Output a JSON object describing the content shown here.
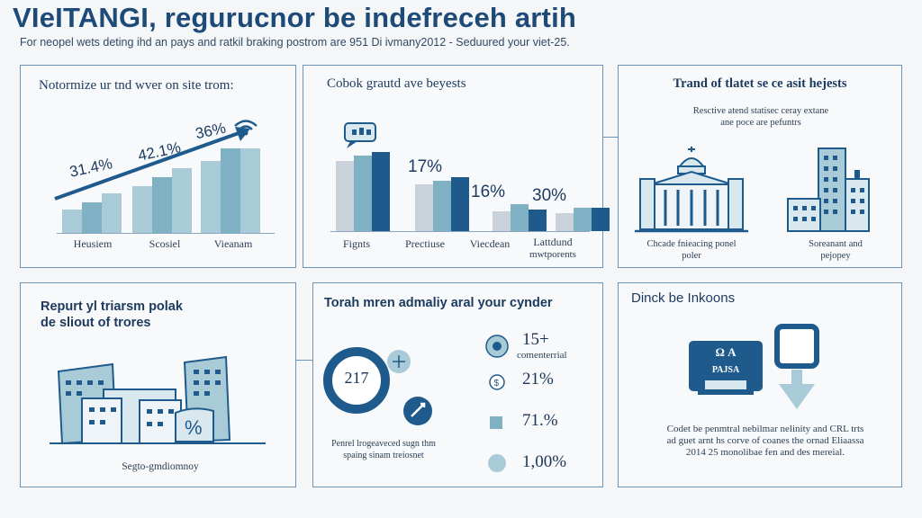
{
  "header": {
    "title": "VIeITANGI, regurucnor be indefreceh artih",
    "subtitle": "For neopel wets deting ihd an pays and ratkil braking postrom are 951 Di ivmany2012 - Seduured your viet-25."
  },
  "colors": {
    "dark_blue": "#1f5a8c",
    "mid_teal": "#7fb0c4",
    "light_teal": "#a9cbd8",
    "grey": "#c9d2da",
    "border": "#6f93b5"
  },
  "panel1": {
    "title": "Notormize ur tnd wver on site trom:",
    "labels": [
      "31.4%",
      "42.1%",
      "36%"
    ],
    "categories": [
      "Heusiem",
      "Scosiel",
      "Vieanam"
    ],
    "icon": "wifi-icon"
  },
  "panel2": {
    "title": "Cobok grautd ave beyests",
    "values": [
      "17%",
      "16%",
      "30%"
    ],
    "categories": [
      "Fignts",
      "Prectiuse",
      "Viecdean",
      "Lattdund"
    ],
    "category_sub": "mwtporents",
    "icon": "chat-bubble-icon"
  },
  "panel3": {
    "title": "Trand of tlatet se ce asit hejests",
    "caption": "Resctive atend statisec ceray extane ane poce are pefuntrs",
    "left_caption": "Chcade fnieacing ponel poler",
    "right_caption": "Soreanant and pejopey",
    "icons": [
      "government-building-icon",
      "city-buildings-icon"
    ]
  },
  "panel4": {
    "title_line1": "Repurt yl triarsm polak",
    "title_line2": "de sliout of trores",
    "caption": "Segto-gmdiomnoy",
    "icon": "city-skyline-icon"
  },
  "panel5": {
    "title": "Torah mren admaliy aral your cynder",
    "circle_value": "217",
    "circle_caption": "Penrel lrogeaveced sugn thm spaing sinam treiosnet",
    "stats": [
      {
        "value": "15+",
        "label": "comenterrial",
        "icon": "globe-icon"
      },
      {
        "value": "21%",
        "label": "",
        "icon": "dollar-icon"
      },
      {
        "value": "71.%",
        "label": "",
        "icon": "chart-icon"
      },
      {
        "value": "1,00%",
        "label": "",
        "icon": "dot-icon"
      }
    ]
  },
  "panel6": {
    "title": "Dinck be Inkoons",
    "sign_line1": "Ω A",
    "sign_line2": "PAJSA",
    "caption": "Codet be penmtral nebilmar nelinity and CRL trts ad guet arnt hs corve of coanes the ornad Eliaassa 2014 25 monolibae fen and des mereial.",
    "icons": [
      "sign-board-icon",
      "download-arrow-icon"
    ]
  }
}
